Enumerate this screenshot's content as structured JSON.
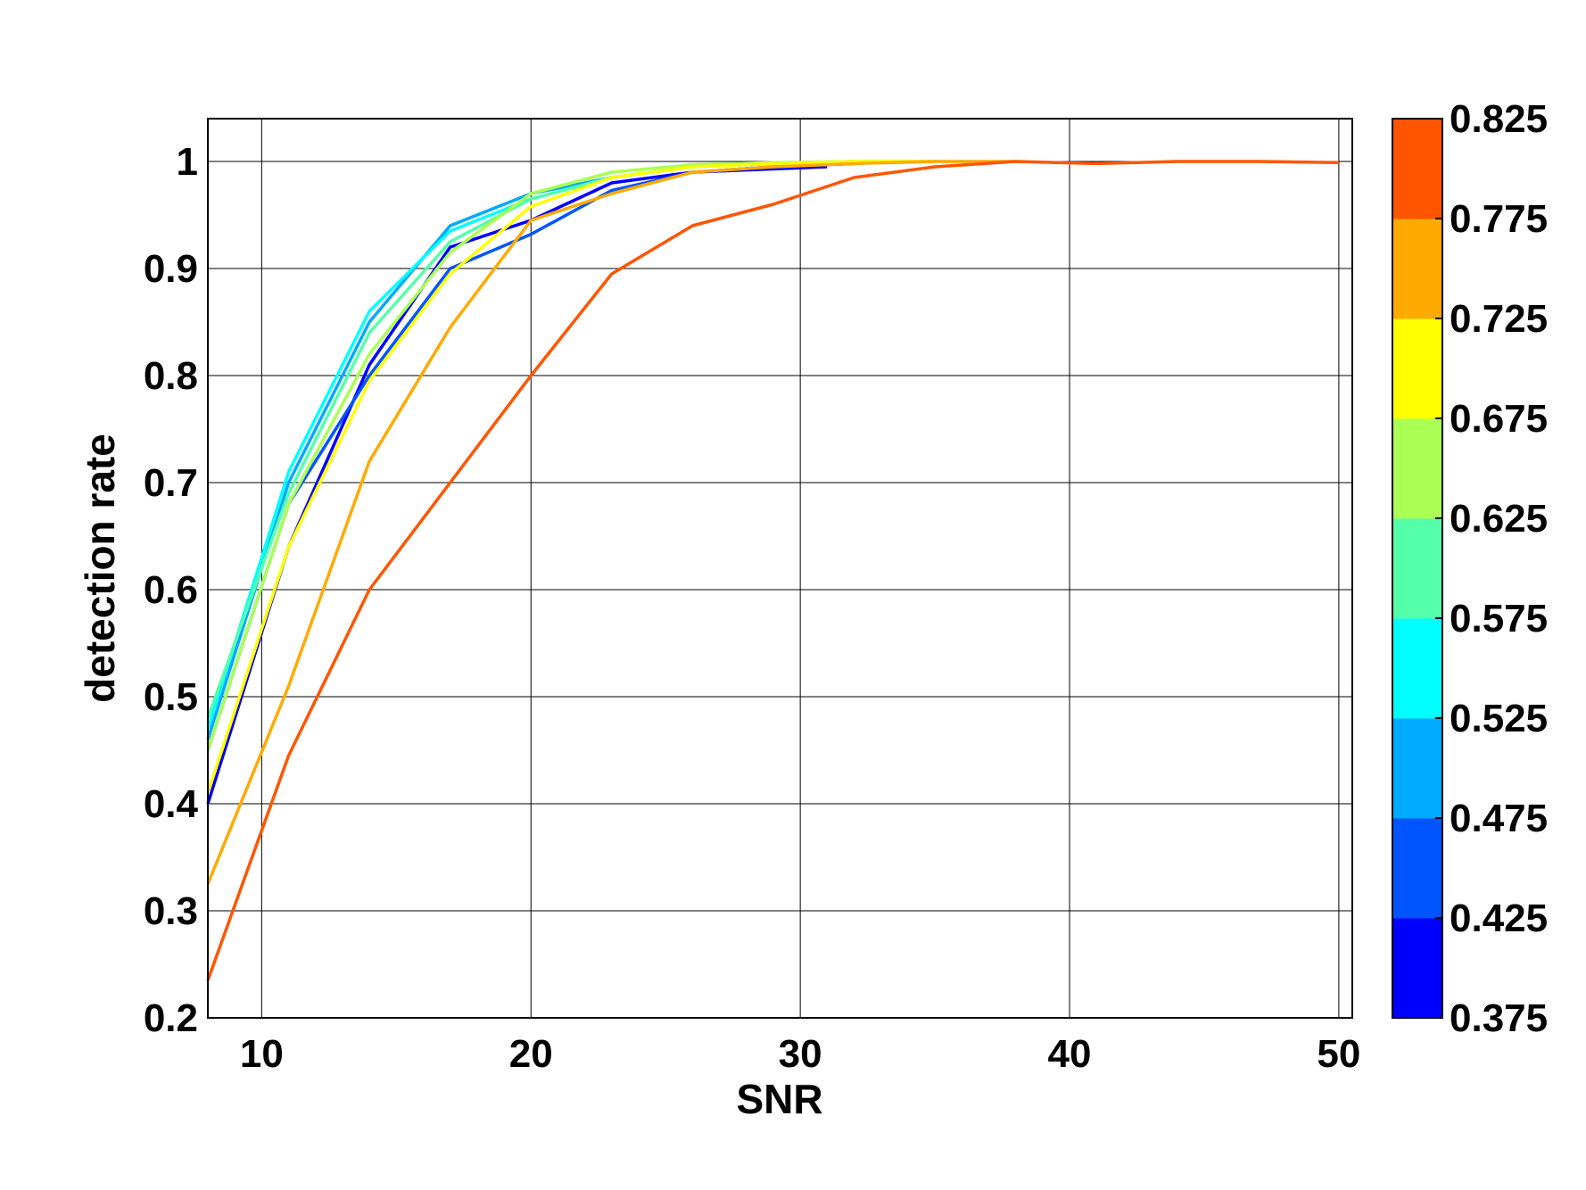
{
  "chart_data": {
    "type": "line",
    "title": "",
    "xlabel": "SNR",
    "ylabel": "detection rate",
    "xlim": [
      8,
      50.5
    ],
    "ylim": [
      0.2,
      1.04
    ],
    "xticks": [
      10,
      20,
      30,
      40,
      50
    ],
    "yticks": [
      0.2,
      0.3,
      0.4,
      0.5,
      0.6,
      0.7,
      0.8,
      0.9,
      1
    ],
    "xtick_labels": [
      "10",
      "20",
      "30",
      "40",
      "50"
    ],
    "ytick_labels": [
      "0.2",
      "0.3",
      "0.4",
      "0.5",
      "0.6",
      "0.7",
      "0.8",
      "0.9",
      "1"
    ],
    "grid": true,
    "legend": "colorbar-right",
    "colorbar": {
      "tick_labels": [
        "0.375",
        "0.425",
        "0.475",
        "0.525",
        "0.575",
        "0.625",
        "0.675",
        "0.725",
        "0.775",
        "0.825"
      ],
      "colors": [
        "#0000ff",
        "#0055ff",
        "#00aaff",
        "#00ffff",
        "#55ffaa",
        "#aaff55",
        "#ffff00",
        "#ffaa00",
        "#ff5500"
      ]
    },
    "series": [
      {
        "color": "#0000ff",
        "x": [
          8,
          11,
          14,
          17,
          20,
          23,
          26,
          29,
          31
        ],
        "y": [
          0.4,
          0.64,
          0.81,
          0.92,
          0.945,
          0.98,
          0.99,
          0.993,
          0.995
        ]
      },
      {
        "color": "#0055ff",
        "x": [
          8,
          11,
          14,
          17,
          20,
          23,
          26,
          29,
          32
        ],
        "y": [
          0.45,
          0.68,
          0.8,
          0.9,
          0.932,
          0.973,
          0.99,
          0.995,
          0.998
        ]
      },
      {
        "color": "#00aaff",
        "x": [
          8,
          11,
          14,
          17,
          20,
          23,
          26,
          29,
          32
        ],
        "y": [
          0.46,
          0.7,
          0.85,
          0.94,
          0.97,
          0.985,
          0.995,
          0.998,
          1.0
        ]
      },
      {
        "color": "#00ffff",
        "x": [
          8,
          11,
          14,
          17,
          20,
          23,
          26,
          29,
          32
        ],
        "y": [
          0.47,
          0.71,
          0.86,
          0.935,
          0.965,
          0.985,
          0.995,
          0.998,
          1.0
        ]
      },
      {
        "color": "#55ffaa",
        "x": [
          8,
          11,
          14,
          17,
          20,
          23,
          26,
          29,
          32
        ],
        "y": [
          0.48,
          0.69,
          0.84,
          0.925,
          0.965,
          0.985,
          0.995,
          0.998,
          1.0
        ]
      },
      {
        "color": "#aaff55",
        "x": [
          8,
          11,
          14,
          17,
          20,
          23,
          26,
          29,
          32,
          35
        ],
        "y": [
          0.45,
          0.68,
          0.82,
          0.915,
          0.97,
          0.99,
          0.997,
          0.999,
          1.0,
          1.0
        ]
      },
      {
        "color": "#ffff00",
        "x": [
          8,
          11,
          14,
          17,
          20,
          23,
          26,
          29,
          32,
          35
        ],
        "y": [
          0.41,
          0.64,
          0.795,
          0.895,
          0.958,
          0.985,
          0.995,
          0.998,
          1.0,
          1.0
        ]
      },
      {
        "color": "#ffaa00",
        "x": [
          8,
          11,
          14,
          17,
          20,
          23,
          26,
          29,
          32,
          35,
          38
        ],
        "y": [
          0.325,
          0.51,
          0.72,
          0.845,
          0.945,
          0.97,
          0.99,
          0.995,
          0.998,
          1.0,
          1.0
        ]
      },
      {
        "color": "#ff5500",
        "x": [
          8,
          11,
          14,
          17,
          20,
          23,
          26,
          29,
          32,
          35,
          38,
          41,
          44,
          47,
          50
        ],
        "y": [
          0.235,
          0.445,
          0.6,
          0.7,
          0.8,
          0.895,
          0.94,
          0.96,
          0.985,
          0.995,
          1.0,
          0.998,
          1.0,
          1.0,
          0.999
        ]
      }
    ]
  }
}
